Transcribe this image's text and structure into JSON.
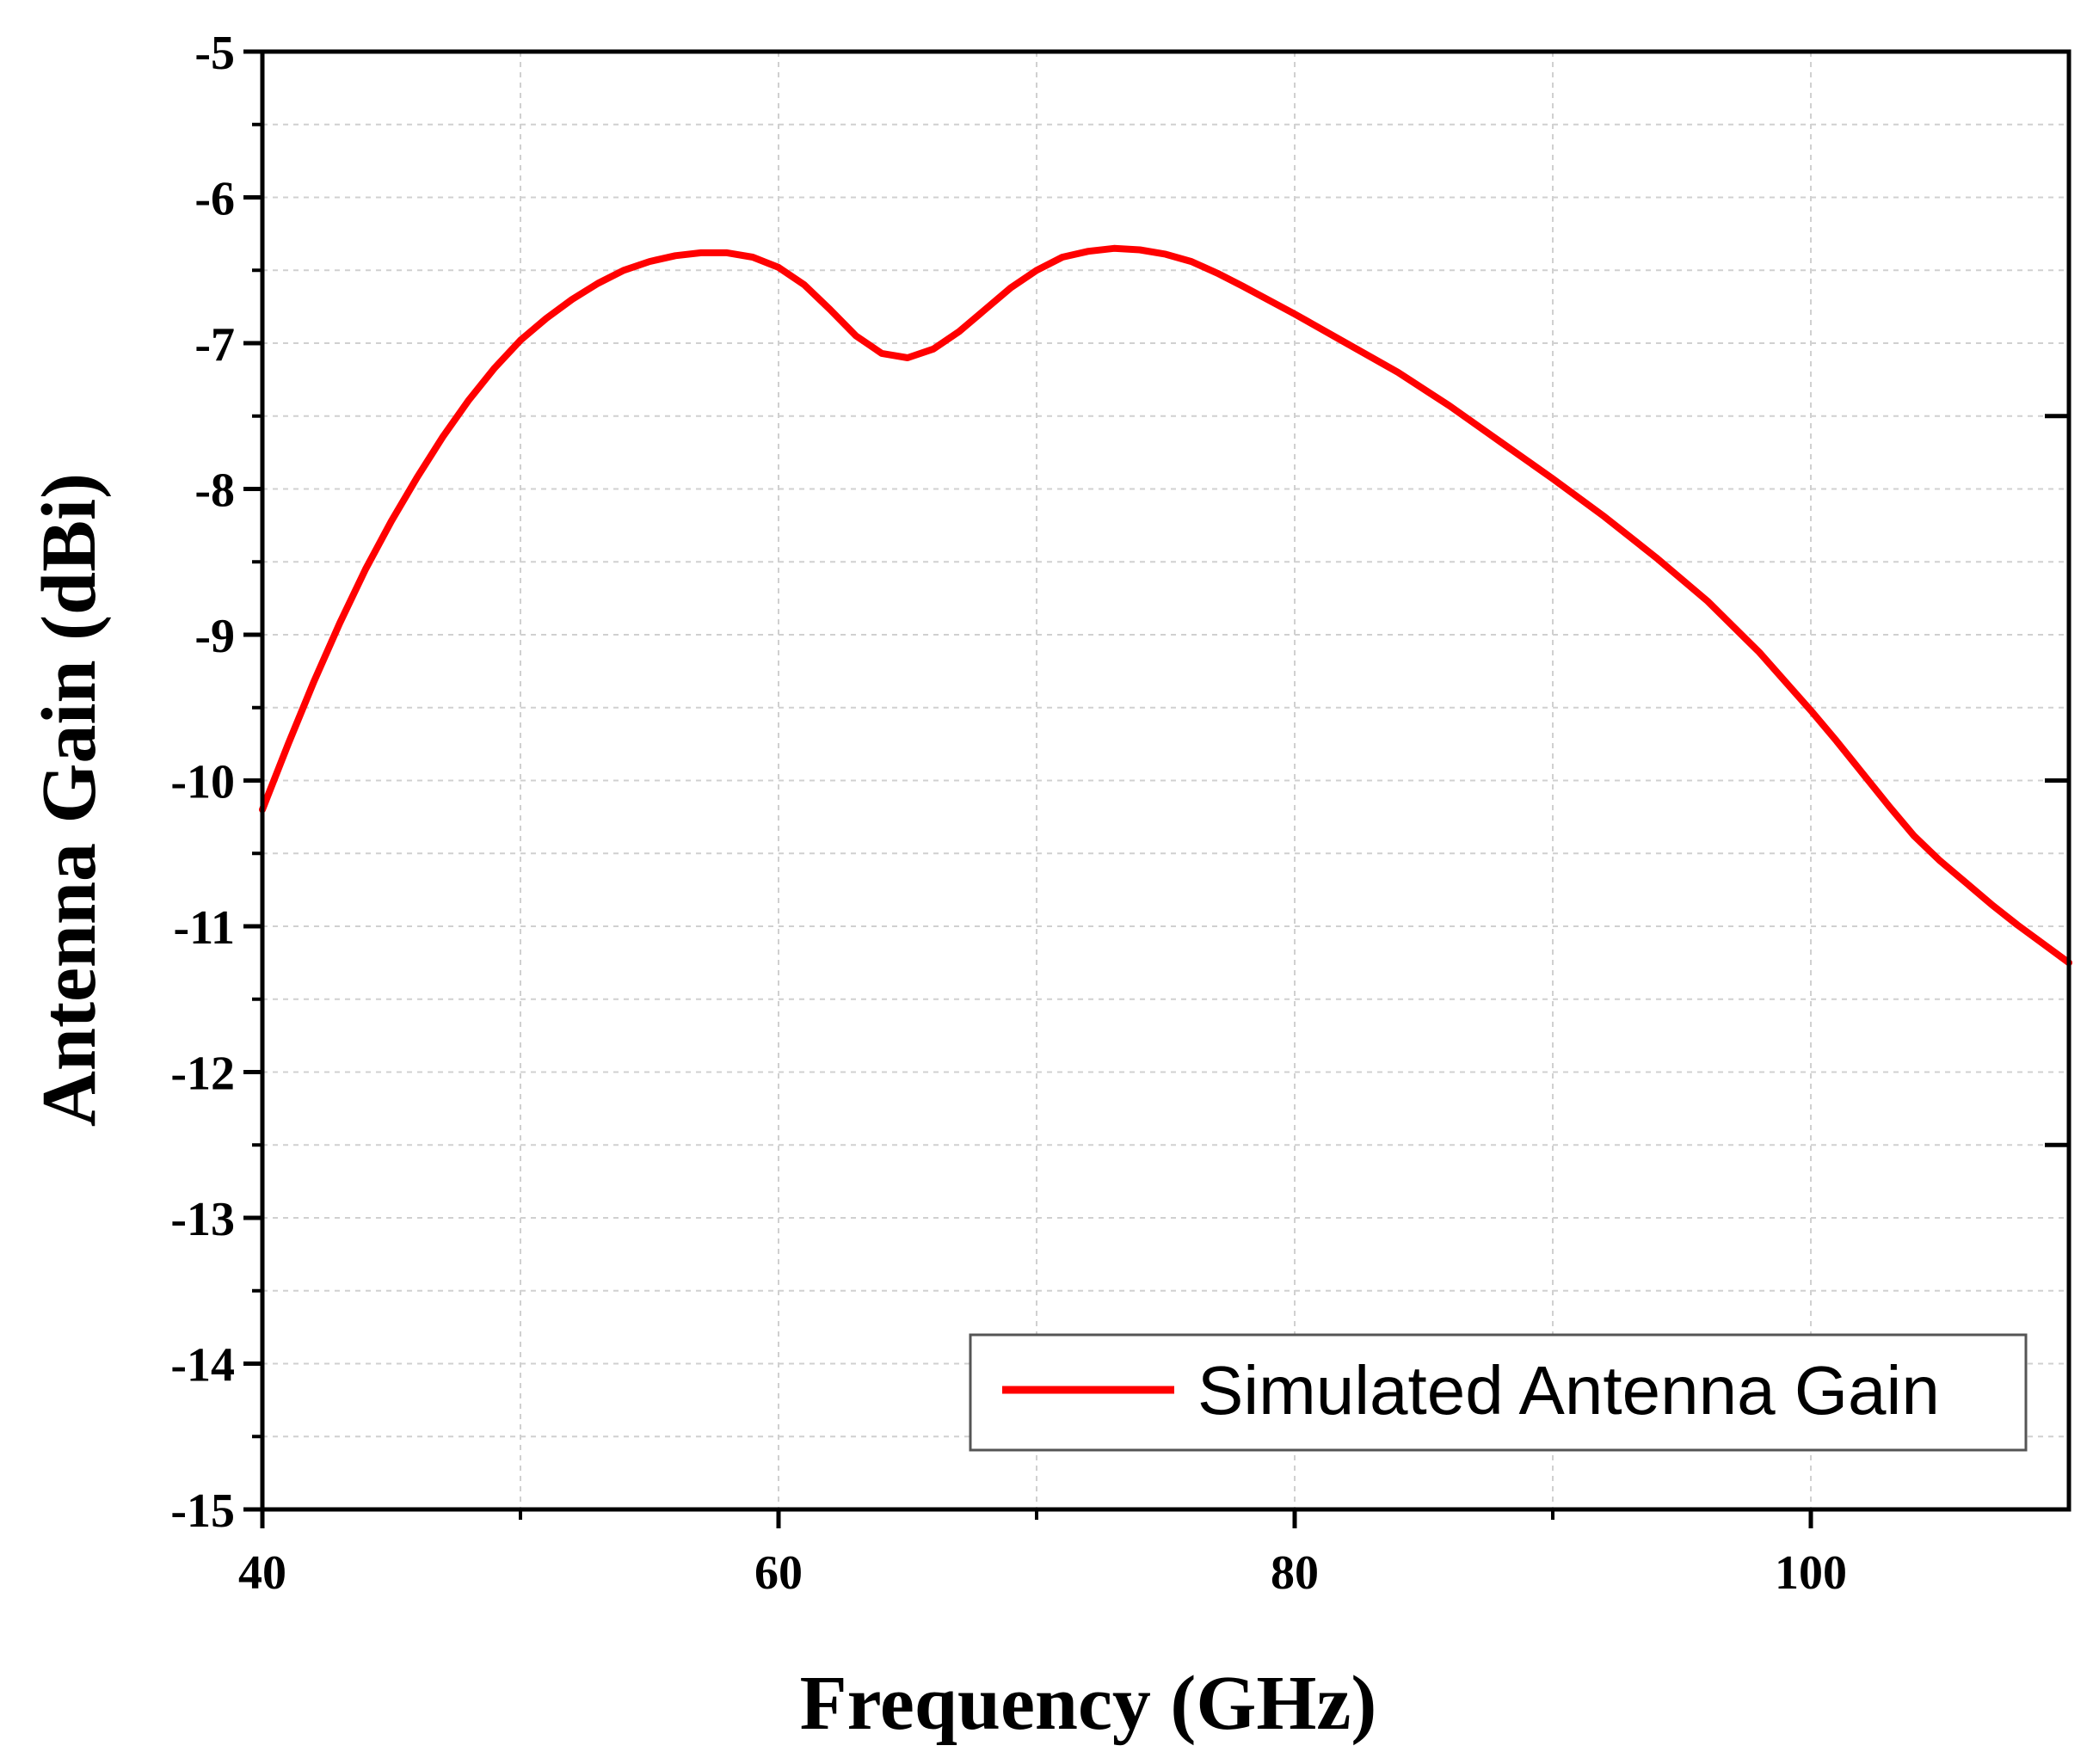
{
  "chart_data": {
    "type": "line",
    "title": "",
    "xlabel": "Frequency (GHz)",
    "ylabel": "Antenna Gain (dBi)",
    "xlim": [
      40,
      110
    ],
    "ylim": [
      -15,
      -5
    ],
    "x_ticks": [
      40,
      60,
      80,
      100
    ],
    "x_tick_labels": [
      "40",
      "60",
      "80",
      "100"
    ],
    "x_minor_ticks": [
      50,
      70,
      90
    ],
    "y_ticks": [
      -15,
      -14,
      -13,
      -12,
      -11,
      -10,
      -9,
      -8,
      -7,
      -6,
      -5
    ],
    "y_tick_labels": [
      "-15",
      "-14",
      "-13",
      "-12",
      "-11",
      "-10",
      "-9",
      "-8",
      "-7",
      "-6",
      "-5"
    ],
    "grid": true,
    "legend_position": "bottom-right",
    "series": [
      {
        "name": "Simulated Antenna Gain",
        "color": "#ff0000",
        "x": [
          40,
          41,
          42,
          43,
          44,
          45,
          46,
          47,
          48,
          49,
          50,
          51,
          52,
          53,
          54,
          55,
          56,
          57,
          58,
          59,
          60,
          61,
          62,
          63,
          64,
          65,
          66,
          67,
          68,
          69,
          70,
          71,
          72,
          73,
          74,
          75,
          76,
          77,
          78,
          80,
          82,
          84,
          86,
          88,
          90,
          92,
          94,
          96,
          98,
          100,
          101,
          102,
          103,
          104,
          105,
          106,
          107,
          108,
          109,
          110
        ],
        "y": [
          -10.2,
          -9.75,
          -9.32,
          -8.92,
          -8.55,
          -8.22,
          -7.92,
          -7.64,
          -7.39,
          -7.17,
          -6.98,
          -6.83,
          -6.7,
          -6.59,
          -6.5,
          -6.44,
          -6.4,
          -6.38,
          -6.38,
          -6.41,
          -6.48,
          -6.6,
          -6.77,
          -6.95,
          -7.07,
          -7.1,
          -7.04,
          -6.92,
          -6.77,
          -6.62,
          -6.5,
          -6.41,
          -6.37,
          -6.35,
          -6.36,
          -6.39,
          -6.44,
          -6.52,
          -6.61,
          -6.8,
          -7.0,
          -7.2,
          -7.43,
          -7.68,
          -7.93,
          -8.19,
          -8.47,
          -8.77,
          -9.12,
          -9.52,
          -9.73,
          -9.95,
          -10.17,
          -10.38,
          -10.55,
          -10.7,
          -10.85,
          -10.99,
          -11.12,
          -11.25
        ]
      }
    ]
  }
}
